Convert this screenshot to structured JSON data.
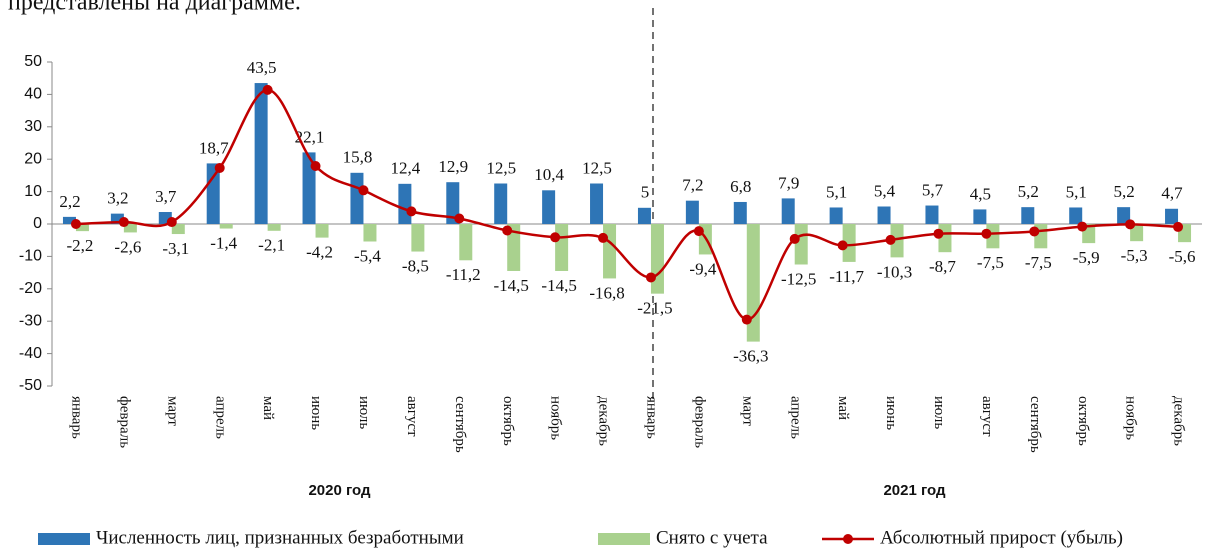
{
  "header_text": "представлены на диаграмме.",
  "chart_data": {
    "type": "bar-line",
    "categories": [
      "январь",
      "февраль",
      "март",
      "апрель",
      "май",
      "июнь",
      "июль",
      "август",
      "сентябрь",
      "октябрь",
      "ноябрь",
      "декабрь",
      "январь",
      "февраль",
      "март",
      "апрель",
      "май",
      "июнь",
      "июль",
      "август",
      "сентябрь",
      "октябрь",
      "ноябрь",
      "декабрь"
    ],
    "groups": [
      {
        "label": "2020 год",
        "span": [
          0,
          11
        ]
      },
      {
        "label": "2021 год",
        "span": [
          12,
          23
        ]
      }
    ],
    "series": [
      {
        "name": "Численность лиц, признанных безработными",
        "color": "#2e75b6",
        "kind": "bar",
        "values": [
          2.2,
          3.2,
          3.7,
          18.7,
          43.5,
          22.1,
          15.8,
          12.4,
          12.9,
          12.5,
          10.4,
          12.5,
          5,
          7.2,
          6.8,
          7.9,
          5.1,
          5.4,
          5.7,
          4.5,
          5.2,
          5.1,
          5.2,
          4.7
        ],
        "value_labels": [
          "2,2",
          "3,2",
          "3,7",
          "18,7",
          "43,5",
          "22,1",
          "15,8",
          "12,4",
          "12,9",
          "12,5",
          "10,4",
          "12,5",
          "5",
          "7,2",
          "6,8",
          "7,9",
          "5,1",
          "5,4",
          "5,7",
          "4,5",
          "5,2",
          "5,1",
          "5,2",
          "4,7"
        ]
      },
      {
        "name": "Снято с учета",
        "color": "#a9d18e",
        "kind": "bar",
        "values": [
          -2.2,
          -2.6,
          -3.1,
          -1.4,
          -2.1,
          -4.2,
          -5.4,
          -8.5,
          -11.2,
          -14.5,
          -14.5,
          -16.8,
          -21.5,
          -9.4,
          -36.3,
          -12.5,
          -11.7,
          -10.3,
          -8.7,
          -7.5,
          -7.5,
          -5.9,
          -5.3,
          -5.6
        ],
        "value_labels": [
          "-2,2",
          "-2,6",
          "-3,1",
          "-1,4",
          "-2,1",
          "-4,2",
          "-5,4",
          "-8,5",
          "-11,2",
          "-14,5",
          "-14,5",
          "-16,8",
          "-21,5",
          "-9,4",
          "-36,3",
          "-12,5",
          "-11,7",
          "-10,3",
          "-8,7",
          "-7,5",
          "-7,5",
          "-5,9",
          "-5,3",
          "-5,6"
        ]
      },
      {
        "name": "Абсолютный прирост (убыль)",
        "color": "#c00000",
        "kind": "line",
        "values": [
          0,
          0.6,
          0.6,
          17.3,
          41.4,
          17.9,
          10.4,
          3.9,
          1.7,
          -2,
          -4.1,
          -4.3,
          -16.5,
          -2.2,
          -29.5,
          -4.6,
          -6.6,
          -4.9,
          -3,
          -3,
          -2.3,
          -0.8,
          -0.1,
          -0.9
        ]
      }
    ],
    "ylim": [
      -50,
      50
    ],
    "yticks": [
      -50,
      -40,
      -30,
      -20,
      -10,
      0,
      10,
      20,
      30,
      40,
      50
    ]
  }
}
